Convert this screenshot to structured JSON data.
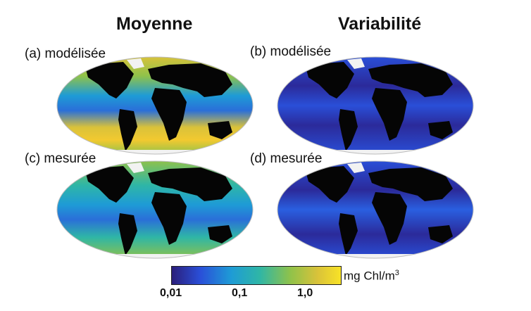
{
  "headers": {
    "left": "Moyenne",
    "right": "Variabilité"
  },
  "panels": [
    {
      "label": "(a) modélisée",
      "kind": "mean"
    },
    {
      "label": "(b) modélisée",
      "kind": "var"
    },
    {
      "label": "(c) mesurée",
      "kind": "mean"
    },
    {
      "label": "(d) mesurée",
      "kind": "var"
    }
  ],
  "colorbar": {
    "unit": "mg Chl/m",
    "unit_superscript": "3",
    "ticks": [
      "0,01",
      "0,1",
      "1,0"
    ],
    "colors": [
      "#2b1e7a",
      "#2a4fd8",
      "#1e9bd6",
      "#2fb6a6",
      "#8fc24a",
      "#d9c23a",
      "#f9e326"
    ]
  },
  "colors": {
    "land": "#050505",
    "ice": "#f2f2f2",
    "mean_ocean": "#2fa7b8",
    "var_ocean": "#2b3fb0"
  }
}
